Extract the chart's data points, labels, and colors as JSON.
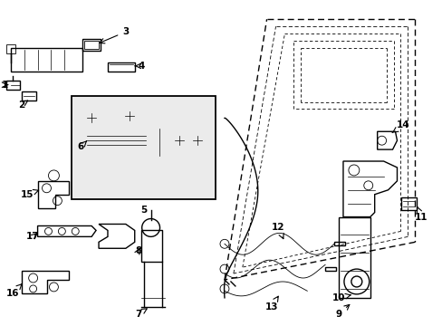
{
  "bg_color": "#ffffff",
  "line_color": "#000000",
  "box_fill": "#ebebeb",
  "fig_width": 4.89,
  "fig_height": 3.6,
  "dpi": 100
}
